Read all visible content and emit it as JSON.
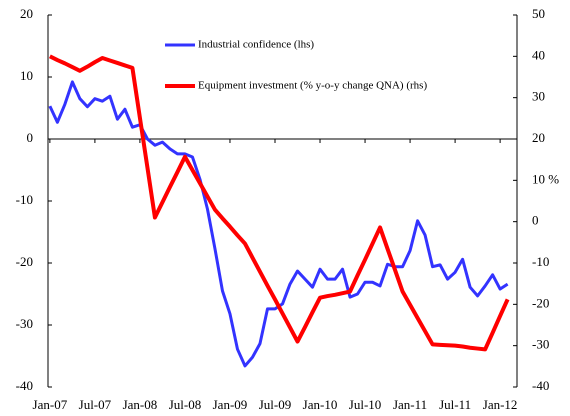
{
  "chart_data": {
    "type": "line",
    "categories": [
      "Jan-07",
      null,
      null,
      null,
      null,
      null,
      "Jul-07",
      null,
      null,
      null,
      null,
      null,
      "Jan-08",
      null,
      null,
      null,
      null,
      null,
      "Jul-08",
      null,
      null,
      null,
      null,
      null,
      "Jan-09",
      null,
      null,
      null,
      null,
      null,
      "Jul-09",
      null,
      null,
      null,
      null,
      null,
      "Jan-10",
      null,
      null,
      null,
      null,
      null,
      "Jul-10",
      null,
      null,
      null,
      null,
      null,
      "Jan-11",
      null,
      null,
      null,
      null,
      null,
      "Jul-11",
      null,
      null,
      null,
      null,
      null,
      "Jan-12",
      null
    ],
    "series": [
      {
        "name": "Industrial confidence (lhs)",
        "color": "#3333ff",
        "axis": "y",
        "values": [
          5.3,
          2.7,
          5.6,
          9.2,
          6.5,
          5.2,
          6.5,
          6.1,
          6.9,
          3.2,
          4.8,
          1.9,
          2.3,
          0,
          -1,
          -0.5,
          -1.6,
          -2.4,
          -2.4,
          -2.9,
          -6.5,
          -11.3,
          -17.7,
          -24.5,
          -28.2,
          -33.9,
          -36.6,
          -35.2,
          -33,
          -27.4,
          -27.4,
          -26.6,
          -23.4,
          -21.3,
          -22.6,
          -23.9,
          -21,
          -22.6,
          -22.6,
          -21,
          -25.5,
          -25,
          -23.1,
          -23.1,
          -23.7,
          -20.2,
          -20.6,
          -20.6,
          -18,
          -13.2,
          -15.5,
          -20.6,
          -20.3,
          -22.6,
          -21.5,
          -19.4,
          -23.9,
          -25.3,
          -23.7,
          -21.9,
          -24.2,
          -23.4
        ]
      },
      {
        "name": "Equipment investment (% y-o-y change QNA) (rhs)",
        "color": "#ff0000",
        "axis": "y2",
        "values": [
          40,
          39.1,
          38.3,
          37.4,
          36.5,
          37.5,
          38.6,
          39.6,
          39.0,
          38.4,
          37.8,
          37.2,
          25.1,
          13.1,
          1,
          4.7,
          8.4,
          12.0,
          15.7,
          12.5,
          9.3,
          6.1,
          2.9,
          0.8,
          -1.2,
          -3.3,
          -5.3,
          -8.7,
          -12.1,
          -15.5,
          -18.8,
          -22.2,
          -25.6,
          -29,
          -25.5,
          -21.9,
          -18.4,
          -18.0,
          -17.7,
          -17.3,
          -16.9,
          -13.0,
          -9.2,
          -5.3,
          -1.4,
          -6.6,
          -11.7,
          -16.9,
          -20.1,
          -23.3,
          -26.5,
          -29.7,
          -29.8,
          -29.9,
          -30,
          -30.2,
          -30.5,
          -30.7,
          -30.9,
          -26.9,
          -22.8,
          -18.8
        ]
      }
    ],
    "ylim": [
      -40,
      20
    ],
    "yticks": [
      20,
      10,
      0,
      -10,
      -20,
      -30,
      -40
    ],
    "y2lim": [
      -40,
      50
    ],
    "y2ticks": [
      50,
      40,
      30,
      20,
      {
        "value": 10,
        "label": "10 %"
      },
      0,
      -10,
      -20,
      -30,
      -40
    ]
  }
}
